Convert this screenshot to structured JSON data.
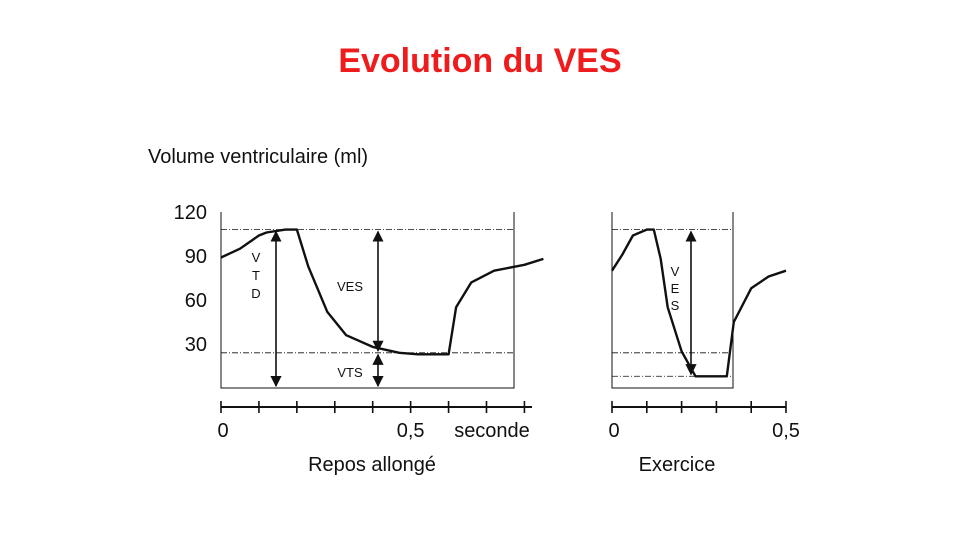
{
  "title": "Evolution du VES",
  "colors": {
    "title": "#ee1c1c",
    "ink": "#111111"
  },
  "chart_data": [
    {
      "type": "line",
      "panel": "Repos allongé",
      "title": "Repos allongé",
      "ylabel": "Volume ventriculaire (ml)",
      "xlabel": "seconde",
      "xlim": [
        0,
        0.82
      ],
      "ylim": [
        0,
        120
      ],
      "y_ticks": [
        "120",
        "90",
        "60",
        "30"
      ],
      "y_tick_values": [
        120,
        90,
        60,
        30
      ],
      "x_tick_labels": [
        "0",
        "0,5"
      ],
      "x_tick_values": [
        0,
        0.5
      ],
      "x_minor_ticks": [
        0,
        0.1,
        0.2,
        0.3,
        0.4,
        0.5,
        0.6,
        0.7,
        0.8
      ],
      "reference_lines": [
        108,
        24
      ],
      "series": [
        {
          "x": [
            0,
            0.05,
            0.1,
            0.12,
            0.17,
            0.2,
            0.23,
            0.28,
            0.33,
            0.4,
            0.47,
            0.52,
            0.56,
            0.6,
            0.62,
            0.66,
            0.72,
            0.8,
            0.85
          ],
          "y": [
            89,
            95,
            104,
            106,
            108,
            108,
            83,
            52,
            36,
            28,
            24,
            23,
            23,
            23,
            55,
            72,
            80,
            84,
            88
          ]
        }
      ],
      "annotations": {
        "vtd_letters": [
          "V",
          "T",
          "D"
        ],
        "ves": "VES",
        "vts": "VTS"
      }
    },
    {
      "type": "line",
      "panel": "Exercice",
      "title": "Exercice",
      "xlim": [
        0,
        0.5
      ],
      "ylim": [
        0,
        120
      ],
      "x_tick_labels": [
        "0",
        "0,5"
      ],
      "x_tick_values": [
        0,
        0.5
      ],
      "x_minor_ticks": [
        0,
        0.1,
        0.2,
        0.3,
        0.4,
        0.5
      ],
      "reference_lines": [
        108,
        24,
        8
      ],
      "series": [
        {
          "x": [
            0,
            0.03,
            0.06,
            0.1,
            0.12,
            0.14,
            0.16,
            0.2,
            0.24,
            0.29,
            0.33,
            0.35,
            0.4,
            0.45,
            0.5
          ],
          "y": [
            80,
            91,
            104,
            108,
            108,
            88,
            55,
            25,
            8,
            8,
            8,
            45,
            68,
            76,
            80
          ]
        }
      ],
      "annotations": {
        "ves_letters": [
          "V",
          "E",
          "S"
        ]
      }
    }
  ]
}
